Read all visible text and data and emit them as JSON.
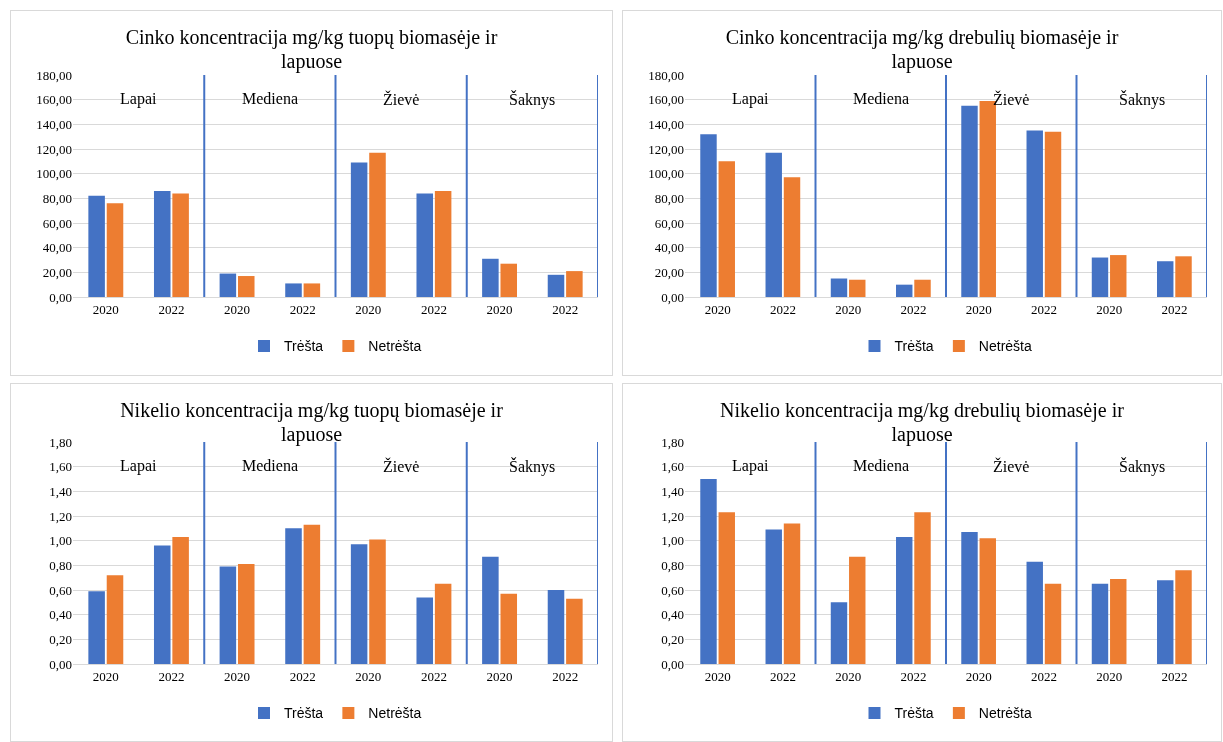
{
  "chart_data": [
    {
      "type": "bar",
      "title": "Cinko koncentracija  mg/kg  tuopų biomasėje ir lapuose",
      "categories": [
        "2020",
        "2022",
        "2020",
        "2022",
        "2020",
        "2022",
        "2020",
        "2022"
      ],
      "series": [
        {
          "name": "Trėšta",
          "color": "#4472c4",
          "values": [
            82,
            86,
            19,
            11,
            109,
            84,
            31,
            18
          ]
        },
        {
          "name": "Netrėšta",
          "color": "#ed7d31",
          "values": [
            76,
            84,
            17,
            11,
            117,
            86,
            27,
            21
          ]
        }
      ],
      "ylim": [
        0,
        180
      ],
      "yticks": [
        {
          "value": 0,
          "label": "0,00"
        },
        {
          "value": 20,
          "label": "20,00"
        },
        {
          "value": 40,
          "label": "40,00"
        },
        {
          "value": 60,
          "label": "60,00"
        },
        {
          "value": 80,
          "label": "80,00"
        },
        {
          "value": 100,
          "label": "100,00"
        },
        {
          "value": 120,
          "label": "120,00"
        },
        {
          "value": 140,
          "label": "140,00"
        },
        {
          "value": 160,
          "label": "160,00"
        },
        {
          "value": 180,
          "label": "180,00"
        }
      ],
      "grid": "y",
      "legend": "bottom",
      "annotations": [
        "Lapai",
        "Mediena",
        "Žievė",
        "Šaknys"
      ]
    },
    {
      "type": "bar",
      "title": "Cinko koncentracija  mg/kg  drebulių biomasėje ir lapuose",
      "categories": [
        "2020",
        "2022",
        "2020",
        "2022",
        "2020",
        "2022",
        "2020",
        "2022"
      ],
      "series": [
        {
          "name": "Trėšta",
          "color": "#4472c4",
          "values": [
            132,
            117,
            15,
            10,
            155,
            135,
            32,
            29
          ]
        },
        {
          "name": "Netrėšta",
          "color": "#ed7d31",
          "values": [
            110,
            97,
            14,
            14,
            159,
            134,
            34,
            33
          ]
        }
      ],
      "ylim": [
        0,
        180
      ],
      "yticks": [
        {
          "value": 0,
          "label": "0,00"
        },
        {
          "value": 20,
          "label": "20,00"
        },
        {
          "value": 40,
          "label": "40,00"
        },
        {
          "value": 60,
          "label": "60,00"
        },
        {
          "value": 80,
          "label": "80,00"
        },
        {
          "value": 100,
          "label": "100,00"
        },
        {
          "value": 120,
          "label": "120,00"
        },
        {
          "value": 140,
          "label": "140,00"
        },
        {
          "value": 160,
          "label": "160,00"
        },
        {
          "value": 180,
          "label": "180,00"
        }
      ],
      "grid": "y",
      "legend": "bottom",
      "annotations": [
        "Lapai",
        "Mediena",
        "Žievė",
        "Šaknys"
      ]
    },
    {
      "type": "bar",
      "title": "Nikelio koncentracija  mg/kg  tuopų biomasėje ir lapuose",
      "categories": [
        "2020",
        "2022",
        "2020",
        "2022",
        "2020",
        "2022",
        "2020",
        "2022"
      ],
      "series": [
        {
          "name": "Trėšta",
          "color": "#4472c4",
          "values": [
            0.59,
            0.96,
            0.79,
            1.1,
            0.97,
            0.54,
            0.87,
            0.6
          ]
        },
        {
          "name": "Netrėšta",
          "color": "#ed7d31",
          "values": [
            0.72,
            1.03,
            0.81,
            1.13,
            1.01,
            0.65,
            0.57,
            0.53
          ]
        }
      ],
      "ylim": [
        0,
        1.8
      ],
      "yticks": [
        {
          "value": 0,
          "label": "0,00"
        },
        {
          "value": 0.2,
          "label": "0,20"
        },
        {
          "value": 0.4,
          "label": "0,40"
        },
        {
          "value": 0.6,
          "label": "0,60"
        },
        {
          "value": 0.8,
          "label": "0,80"
        },
        {
          "value": 1,
          "label": "1,00"
        },
        {
          "value": 1.2,
          "label": "1,20"
        },
        {
          "value": 1.4,
          "label": "1,40"
        },
        {
          "value": 1.6,
          "label": "1,60"
        },
        {
          "value": 1.8,
          "label": "1,80"
        }
      ],
      "grid": "y",
      "legend": "bottom",
      "annotations": [
        "Lapai",
        "Mediena",
        "Žievė",
        "Šaknys"
      ]
    },
    {
      "type": "bar",
      "title": "Nikelio koncentracija  mg/kg  drebulių biomasėje ir lapuose",
      "categories": [
        "2020",
        "2022",
        "2020",
        "2022",
        "2020",
        "2022",
        "2020",
        "2022"
      ],
      "series": [
        {
          "name": "Trėšta",
          "color": "#4472c4",
          "values": [
            1.5,
            1.09,
            0.5,
            1.03,
            1.07,
            0.83,
            0.65,
            0.68
          ]
        },
        {
          "name": "Netrėšta",
          "color": "#ed7d31",
          "values": [
            1.23,
            1.14,
            0.87,
            1.23,
            1.02,
            0.65,
            0.69,
            0.76
          ]
        }
      ],
      "ylim": [
        0,
        1.8
      ],
      "yticks": [
        {
          "value": 0,
          "label": "0,00"
        },
        {
          "value": 0.2,
          "label": "0,20"
        },
        {
          "value": 0.4,
          "label": "0,40"
        },
        {
          "value": 0.6,
          "label": "0,60"
        },
        {
          "value": 0.8,
          "label": "0,80"
        },
        {
          "value": 1,
          "label": "1,00"
        },
        {
          "value": 1.2,
          "label": "1,20"
        },
        {
          "value": 1.4,
          "label": "1,40"
        },
        {
          "value": 1.6,
          "label": "1,60"
        },
        {
          "value": 1.8,
          "label": "1,80"
        }
      ],
      "grid": "y",
      "legend": "bottom",
      "annotations": [
        "Lapai",
        "Mediena",
        "Žievė",
        "Šaknys"
      ]
    }
  ]
}
